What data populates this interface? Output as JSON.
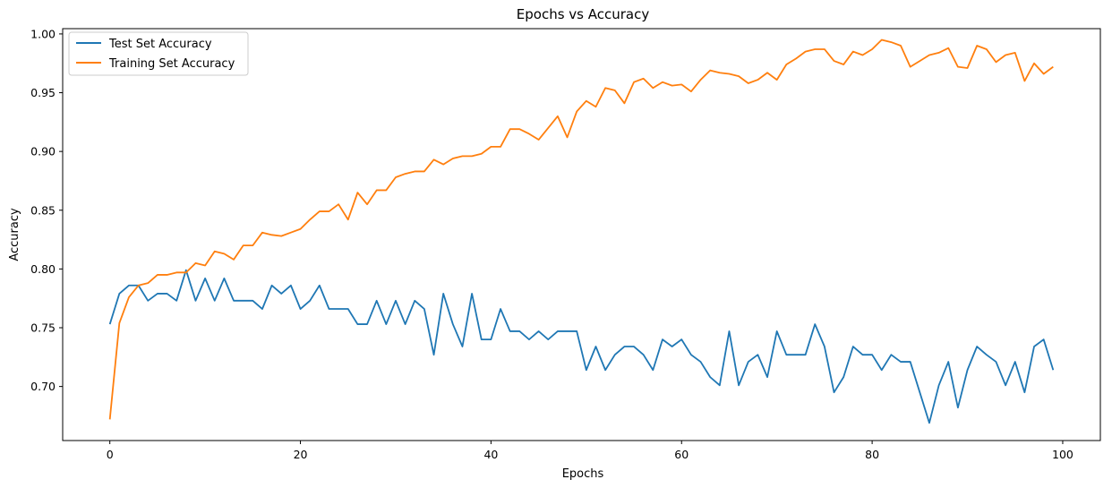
{
  "chart_data": {
    "type": "line",
    "title": "Epochs vs Accuracy",
    "xlabel": "Epochs",
    "ylabel": "Accuracy",
    "xlim": [
      -4.95,
      103.95
    ],
    "ylim": [
      0.654,
      1.0045
    ],
    "xticks": [
      0,
      20,
      40,
      60,
      80,
      100
    ],
    "yticks": [
      0.7,
      0.75,
      0.8,
      0.85,
      0.9,
      0.95,
      1.0
    ],
    "ytick_labels": [
      "0.70",
      "0.75",
      "0.80",
      "0.85",
      "0.90",
      "0.95",
      "1.00"
    ],
    "grid": false,
    "legend_position": "top-left",
    "series": [
      {
        "name": "Test Set Accuracy",
        "color": "#1f77b4",
        "x": [
          0,
          1,
          2,
          3,
          4,
          5,
          6,
          7,
          8,
          9,
          10,
          11,
          12,
          13,
          14,
          15,
          16,
          17,
          18,
          19,
          20,
          21,
          22,
          23,
          24,
          25,
          26,
          27,
          28,
          29,
          30,
          31,
          32,
          33,
          34,
          35,
          36,
          37,
          38,
          39,
          40,
          41,
          42,
          43,
          44,
          45,
          46,
          47,
          48,
          49,
          50,
          51,
          52,
          53,
          54,
          55,
          56,
          57,
          58,
          59,
          60,
          61,
          62,
          63,
          64,
          65,
          66,
          67,
          68,
          69,
          70,
          71,
          72,
          73,
          74,
          75,
          76,
          77,
          78,
          79,
          80,
          81,
          82,
          83,
          84,
          85,
          86,
          87,
          88,
          89,
          90,
          91,
          92,
          93,
          94,
          95,
          96,
          97,
          98,
          99
        ],
        "values": [
          0.753,
          0.779,
          0.786,
          0.786,
          0.773,
          0.779,
          0.779,
          0.773,
          0.799,
          0.773,
          0.792,
          0.773,
          0.792,
          0.773,
          0.773,
          0.773,
          0.766,
          0.786,
          0.779,
          0.786,
          0.766,
          0.773,
          0.786,
          0.766,
          0.766,
          0.766,
          0.753,
          0.753,
          0.773,
          0.753,
          0.773,
          0.753,
          0.773,
          0.766,
          0.727,
          0.779,
          0.753,
          0.734,
          0.779,
          0.74,
          0.74,
          0.766,
          0.747,
          0.747,
          0.74,
          0.747,
          0.74,
          0.747,
          0.747,
          0.747,
          0.714,
          0.734,
          0.714,
          0.727,
          0.734,
          0.734,
          0.727,
          0.714,
          0.74,
          0.734,
          0.74,
          0.727,
          0.721,
          0.708,
          0.701,
          0.747,
          0.701,
          0.721,
          0.727,
          0.708,
          0.747,
          0.727,
          0.727,
          0.727,
          0.753,
          0.734,
          0.695,
          0.708,
          0.734,
          0.727,
          0.727,
          0.714,
          0.727,
          0.721,
          0.721,
          0.695,
          0.669,
          0.701,
          0.721,
          0.682,
          0.714,
          0.734,
          0.727,
          0.721,
          0.701,
          0.721,
          0.695,
          0.734,
          0.74,
          0.714
        ]
      },
      {
        "name": "Training Set Accuracy",
        "color": "#ff7f0e",
        "x": [
          0,
          1,
          2,
          3,
          4,
          5,
          6,
          7,
          8,
          9,
          10,
          11,
          12,
          13,
          14,
          15,
          16,
          17,
          18,
          19,
          20,
          21,
          22,
          23,
          24,
          25,
          26,
          27,
          28,
          29,
          30,
          31,
          32,
          33,
          34,
          35,
          36,
          37,
          38,
          39,
          40,
          41,
          42,
          43,
          44,
          45,
          46,
          47,
          48,
          49,
          50,
          51,
          52,
          53,
          54,
          55,
          56,
          57,
          58,
          59,
          60,
          61,
          62,
          63,
          64,
          65,
          66,
          67,
          68,
          69,
          70,
          71,
          72,
          73,
          74,
          75,
          76,
          77,
          78,
          79,
          80,
          81,
          82,
          83,
          84,
          85,
          86,
          87,
          88,
          89,
          90,
          91,
          92,
          93,
          94,
          95,
          96,
          97,
          98,
          99
        ],
        "values": [
          0.672,
          0.754,
          0.776,
          0.786,
          0.788,
          0.795,
          0.795,
          0.797,
          0.797,
          0.805,
          0.803,
          0.815,
          0.813,
          0.808,
          0.82,
          0.82,
          0.831,
          0.829,
          0.828,
          0.831,
          0.834,
          0.842,
          0.849,
          0.849,
          0.855,
          0.842,
          0.865,
          0.855,
          0.867,
          0.867,
          0.878,
          0.881,
          0.883,
          0.883,
          0.893,
          0.889,
          0.894,
          0.896,
          0.896,
          0.898,
          0.904,
          0.904,
          0.919,
          0.919,
          0.915,
          0.91,
          0.92,
          0.93,
          0.912,
          0.934,
          0.943,
          0.938,
          0.954,
          0.952,
          0.941,
          0.959,
          0.962,
          0.954,
          0.959,
          0.956,
          0.957,
          0.951,
          0.961,
          0.969,
          0.967,
          0.966,
          0.964,
          0.958,
          0.961,
          0.967,
          0.961,
          0.974,
          0.979,
          0.985,
          0.987,
          0.987,
          0.977,
          0.974,
          0.985,
          0.982,
          0.987,
          0.995,
          0.993,
          0.99,
          0.972,
          0.977,
          0.982,
          0.984,
          0.988,
          0.972,
          0.971,
          0.99,
          0.987,
          0.976,
          0.982,
          0.984,
          0.96,
          0.975,
          0.966,
          0.972
        ]
      }
    ]
  }
}
